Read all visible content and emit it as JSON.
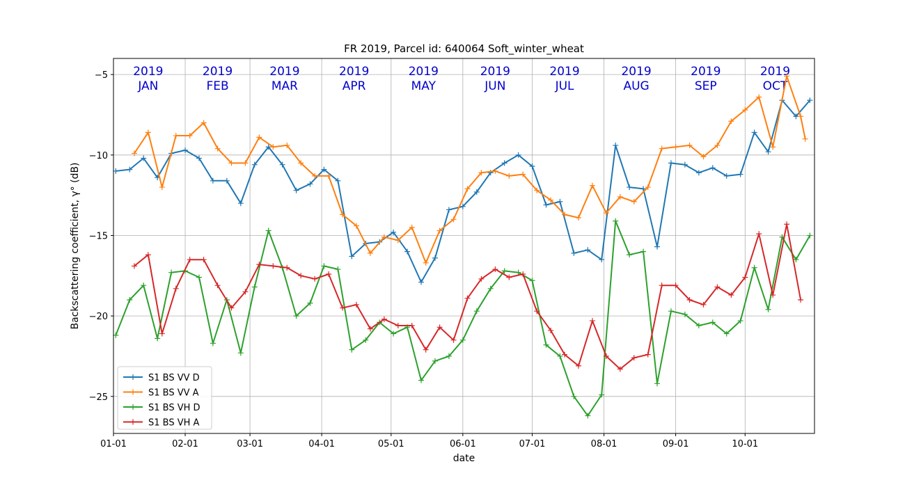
{
  "chart_data": {
    "type": "line",
    "title": "FR 2019, Parcel id: 640064 Soft_winter_wheat",
    "xlabel": "date",
    "ylabel": "Backscattering coefficient, γ° (dB)",
    "xlim": [
      "2019-01-01",
      "2019-10-31"
    ],
    "ylim": [
      -27.3,
      -4.0
    ],
    "yticks": [
      -5,
      -10,
      -15,
      -20,
      -25
    ],
    "xticks": [
      {
        "date": "2019-01-01",
        "label": "01-01"
      },
      {
        "date": "2019-02-01",
        "label": "02-01"
      },
      {
        "date": "2019-03-01",
        "label": "03-01"
      },
      {
        "date": "2019-04-01",
        "label": "04-01"
      },
      {
        "date": "2019-05-01",
        "label": "05-01"
      },
      {
        "date": "2019-06-01",
        "label": "06-01"
      },
      {
        "date": "2019-07-01",
        "label": "07-01"
      },
      {
        "date": "2019-08-01",
        "label": "08-01"
      },
      {
        "date": "2019-09-01",
        "label": "09-01"
      },
      {
        "date": "2019-10-01",
        "label": "10-01"
      }
    ],
    "grid": true,
    "legend_position": "lower-left",
    "month_annotations": [
      {
        "date": "2019-01-16",
        "year": "2019",
        "month": "JAN"
      },
      {
        "date": "2019-02-15",
        "year": "2019",
        "month": "FEB"
      },
      {
        "date": "2019-03-16",
        "year": "2019",
        "month": "MAR"
      },
      {
        "date": "2019-04-15",
        "year": "2019",
        "month": "APR"
      },
      {
        "date": "2019-05-15",
        "year": "2019",
        "month": "MAY"
      },
      {
        "date": "2019-06-15",
        "year": "2019",
        "month": "JUN"
      },
      {
        "date": "2019-07-15",
        "year": "2019",
        "month": "JUL"
      },
      {
        "date": "2019-08-15",
        "year": "2019",
        "month": "AUG"
      },
      {
        "date": "2019-09-14",
        "year": "2019",
        "month": "SEP"
      },
      {
        "date": "2019-10-14",
        "year": "2019",
        "month": "OCT"
      }
    ],
    "series": [
      {
        "name": "S1 BS VV D",
        "color": "#1f77b4",
        "points": [
          [
            "2019-01-02",
            -11.0
          ],
          [
            "2019-01-08",
            -10.9
          ],
          [
            "2019-01-14",
            -10.2
          ],
          [
            "2019-01-20",
            -11.4
          ],
          [
            "2019-01-26",
            -9.9
          ],
          [
            "2019-02-01",
            -9.7
          ],
          [
            "2019-02-07",
            -10.2
          ],
          [
            "2019-02-13",
            -11.6
          ],
          [
            "2019-02-19",
            -11.6
          ],
          [
            "2019-02-25",
            -13.0
          ],
          [
            "2019-03-03",
            -10.6
          ],
          [
            "2019-03-09",
            -9.5
          ],
          [
            "2019-03-15",
            -10.6
          ],
          [
            "2019-03-21",
            -12.2
          ],
          [
            "2019-03-27",
            -11.8
          ],
          [
            "2019-04-02",
            -10.9
          ],
          [
            "2019-04-08",
            -11.6
          ],
          [
            "2019-04-14",
            -16.3
          ],
          [
            "2019-04-20",
            -15.5
          ],
          [
            "2019-04-26",
            -15.4
          ],
          [
            "2019-05-02",
            -14.8
          ],
          [
            "2019-05-08",
            -16.0
          ],
          [
            "2019-05-14",
            -17.9
          ],
          [
            "2019-05-20",
            -16.4
          ],
          [
            "2019-05-26",
            -13.4
          ],
          [
            "2019-06-01",
            -13.2
          ],
          [
            "2019-06-07",
            -12.3
          ],
          [
            "2019-06-13",
            -11.1
          ],
          [
            "2019-06-19",
            -10.5
          ],
          [
            "2019-06-25",
            -10.0
          ],
          [
            "2019-07-01",
            -10.7
          ],
          [
            "2019-07-07",
            -13.1
          ],
          [
            "2019-07-13",
            -12.9
          ],
          [
            "2019-07-19",
            -16.1
          ],
          [
            "2019-07-25",
            -15.9
          ],
          [
            "2019-07-31",
            -16.5
          ],
          [
            "2019-08-06",
            -9.4
          ],
          [
            "2019-08-12",
            -12.0
          ],
          [
            "2019-08-18",
            -12.1
          ],
          [
            "2019-08-24",
            -15.7
          ],
          [
            "2019-08-30",
            -10.5
          ],
          [
            "2019-09-05",
            -10.6
          ],
          [
            "2019-09-11",
            -11.1
          ],
          [
            "2019-09-17",
            -10.8
          ],
          [
            "2019-09-23",
            -11.3
          ],
          [
            "2019-09-29",
            -11.2
          ],
          [
            "2019-10-05",
            -8.6
          ],
          [
            "2019-10-11",
            -9.8
          ],
          [
            "2019-10-17",
            -6.6
          ],
          [
            "2019-10-23",
            -7.6
          ],
          [
            "2019-10-29",
            -6.6
          ]
        ]
      },
      {
        "name": "S1 BS VV A",
        "color": "#ff7f0e",
        "points": [
          [
            "2019-01-10",
            -9.9
          ],
          [
            "2019-01-16",
            -8.6
          ],
          [
            "2019-01-22",
            -12.0
          ],
          [
            "2019-01-28",
            -8.8
          ],
          [
            "2019-02-03",
            -8.8
          ],
          [
            "2019-02-09",
            -8.0
          ],
          [
            "2019-02-15",
            -9.6
          ],
          [
            "2019-02-21",
            -10.5
          ],
          [
            "2019-02-27",
            -10.5
          ],
          [
            "2019-03-05",
            -8.9
          ],
          [
            "2019-03-11",
            -9.5
          ],
          [
            "2019-03-17",
            -9.4
          ],
          [
            "2019-03-23",
            -10.5
          ],
          [
            "2019-03-29",
            -11.3
          ],
          [
            "2019-04-04",
            -11.3
          ],
          [
            "2019-04-10",
            -13.7
          ],
          [
            "2019-04-16",
            -14.4
          ],
          [
            "2019-04-22",
            -16.1
          ],
          [
            "2019-04-28",
            -15.1
          ],
          [
            "2019-05-04",
            -15.3
          ],
          [
            "2019-05-10",
            -14.5
          ],
          [
            "2019-05-16",
            -16.7
          ],
          [
            "2019-05-22",
            -14.7
          ],
          [
            "2019-05-28",
            -14.0
          ],
          [
            "2019-06-03",
            -12.1
          ],
          [
            "2019-06-09",
            -11.1
          ],
          [
            "2019-06-15",
            -11.0
          ],
          [
            "2019-06-21",
            -11.3
          ],
          [
            "2019-06-27",
            -11.2
          ],
          [
            "2019-07-03",
            -12.2
          ],
          [
            "2019-07-09",
            -12.8
          ],
          [
            "2019-07-15",
            -13.7
          ],
          [
            "2019-07-21",
            -13.9
          ],
          [
            "2019-07-27",
            -11.9
          ],
          [
            "2019-08-02",
            -13.6
          ],
          [
            "2019-08-08",
            -12.6
          ],
          [
            "2019-08-14",
            -12.9
          ],
          [
            "2019-08-20",
            -12.0
          ],
          [
            "2019-08-26",
            -9.6
          ],
          [
            "2019-09-01",
            -9.5
          ],
          [
            "2019-09-07",
            -9.4
          ],
          [
            "2019-09-13",
            -10.1
          ],
          [
            "2019-09-19",
            -9.4
          ],
          [
            "2019-09-25",
            -7.9
          ],
          [
            "2019-10-01",
            -7.2
          ],
          [
            "2019-10-07",
            -6.4
          ],
          [
            "2019-10-13",
            -9.5
          ],
          [
            "2019-10-19",
            -5.1
          ],
          [
            "2019-10-25",
            -7.6
          ],
          [
            "2019-10-27",
            -9.0
          ]
        ]
      },
      {
        "name": "S1 BS VH D",
        "color": "#2ca02c",
        "points": [
          [
            "2019-01-02",
            -21.2
          ],
          [
            "2019-01-08",
            -19.0
          ],
          [
            "2019-01-14",
            -18.1
          ],
          [
            "2019-01-20",
            -21.4
          ],
          [
            "2019-01-26",
            -17.3
          ],
          [
            "2019-02-01",
            -17.2
          ],
          [
            "2019-02-07",
            -17.6
          ],
          [
            "2019-02-13",
            -21.7
          ],
          [
            "2019-02-19",
            -19.0
          ],
          [
            "2019-02-25",
            -22.3
          ],
          [
            "2019-03-03",
            -18.2
          ],
          [
            "2019-03-09",
            -14.7
          ],
          [
            "2019-03-15",
            -17.0
          ],
          [
            "2019-03-21",
            -20.0
          ],
          [
            "2019-03-27",
            -19.2
          ],
          [
            "2019-04-02",
            -16.9
          ],
          [
            "2019-04-08",
            -17.1
          ],
          [
            "2019-04-14",
            -22.1
          ],
          [
            "2019-04-20",
            -21.5
          ],
          [
            "2019-04-26",
            -20.4
          ],
          [
            "2019-05-02",
            -21.1
          ],
          [
            "2019-05-08",
            -20.7
          ],
          [
            "2019-05-14",
            -24.0
          ],
          [
            "2019-05-20",
            -22.8
          ],
          [
            "2019-05-26",
            -22.5
          ],
          [
            "2019-06-01",
            -21.5
          ],
          [
            "2019-06-07",
            -19.7
          ],
          [
            "2019-06-13",
            -18.3
          ],
          [
            "2019-06-19",
            -17.2
          ],
          [
            "2019-06-25",
            -17.3
          ],
          [
            "2019-07-01",
            -17.8
          ],
          [
            "2019-07-07",
            -21.8
          ],
          [
            "2019-07-13",
            -22.5
          ],
          [
            "2019-07-19",
            -25.0
          ],
          [
            "2019-07-25",
            -26.2
          ],
          [
            "2019-07-31",
            -24.9
          ],
          [
            "2019-08-06",
            -14.1
          ],
          [
            "2019-08-12",
            -16.2
          ],
          [
            "2019-08-18",
            -16.0
          ],
          [
            "2019-08-24",
            -24.2
          ],
          [
            "2019-08-30",
            -19.7
          ],
          [
            "2019-09-05",
            -19.9
          ],
          [
            "2019-09-11",
            -20.6
          ],
          [
            "2019-09-17",
            -20.4
          ],
          [
            "2019-09-23",
            -21.1
          ],
          [
            "2019-09-29",
            -20.3
          ],
          [
            "2019-10-05",
            -17.0
          ],
          [
            "2019-10-11",
            -19.6
          ],
          [
            "2019-10-17",
            -15.1
          ],
          [
            "2019-10-23",
            -16.5
          ],
          [
            "2019-10-29",
            -15.0
          ]
        ]
      },
      {
        "name": "S1 BS VH A",
        "color": "#d62728",
        "points": [
          [
            "2019-01-10",
            -16.9
          ],
          [
            "2019-01-16",
            -16.2
          ],
          [
            "2019-01-22",
            -21.1
          ],
          [
            "2019-01-28",
            -18.3
          ],
          [
            "2019-02-03",
            -16.5
          ],
          [
            "2019-02-09",
            -16.5
          ],
          [
            "2019-02-15",
            -18.1
          ],
          [
            "2019-02-21",
            -19.5
          ],
          [
            "2019-02-27",
            -18.5
          ],
          [
            "2019-03-05",
            -16.8
          ],
          [
            "2019-03-11",
            -16.9
          ],
          [
            "2019-03-17",
            -17.0
          ],
          [
            "2019-03-23",
            -17.5
          ],
          [
            "2019-03-29",
            -17.7
          ],
          [
            "2019-04-04",
            -17.4
          ],
          [
            "2019-04-10",
            -19.5
          ],
          [
            "2019-04-16",
            -19.3
          ],
          [
            "2019-04-22",
            -20.8
          ],
          [
            "2019-04-28",
            -20.2
          ],
          [
            "2019-05-04",
            -20.6
          ],
          [
            "2019-05-10",
            -20.6
          ],
          [
            "2019-05-16",
            -22.1
          ],
          [
            "2019-05-22",
            -20.7
          ],
          [
            "2019-05-28",
            -21.5
          ],
          [
            "2019-06-03",
            -18.9
          ],
          [
            "2019-06-09",
            -17.7
          ],
          [
            "2019-06-15",
            -17.1
          ],
          [
            "2019-06-21",
            -17.6
          ],
          [
            "2019-06-27",
            -17.4
          ],
          [
            "2019-07-03",
            -19.7
          ],
          [
            "2019-07-09",
            -20.9
          ],
          [
            "2019-07-15",
            -22.4
          ],
          [
            "2019-07-21",
            -23.1
          ],
          [
            "2019-07-27",
            -20.3
          ],
          [
            "2019-08-02",
            -22.5
          ],
          [
            "2019-08-08",
            -23.3
          ],
          [
            "2019-08-14",
            -22.6
          ],
          [
            "2019-08-20",
            -22.4
          ],
          [
            "2019-08-26",
            -18.1
          ],
          [
            "2019-09-01",
            -18.1
          ],
          [
            "2019-09-07",
            -19.0
          ],
          [
            "2019-09-13",
            -19.3
          ],
          [
            "2019-09-19",
            -18.2
          ],
          [
            "2019-09-25",
            -18.7
          ],
          [
            "2019-10-01",
            -17.6
          ],
          [
            "2019-10-07",
            -14.9
          ],
          [
            "2019-10-13",
            -18.7
          ],
          [
            "2019-10-19",
            -14.3
          ],
          [
            "2019-10-25",
            -19.0
          ]
        ]
      }
    ]
  }
}
